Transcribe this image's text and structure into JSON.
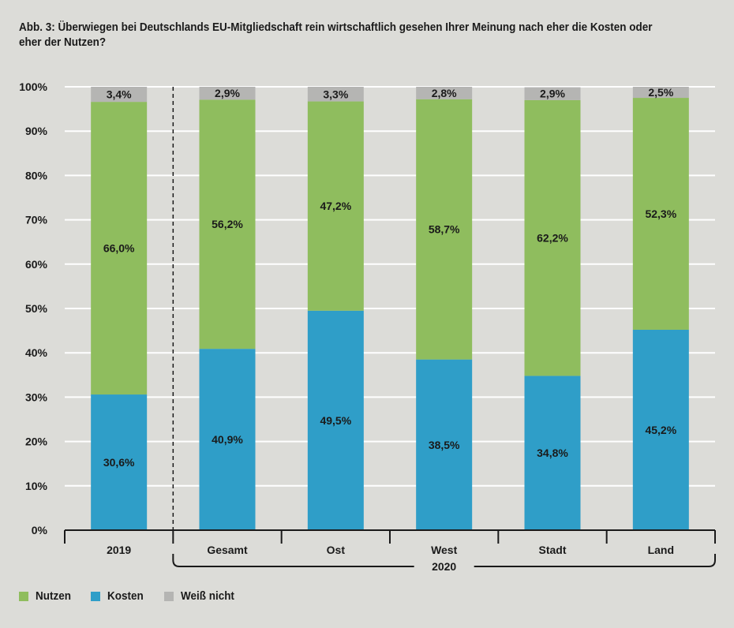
{
  "chart_data": {
    "type": "bar",
    "stacked": true,
    "title": "Abb. 3: Überwiegen bei Deutschlands EU-Mitgliedschaft rein wirtschaftlich gesehen Ihrer Meinung nach eher die Kosten oder eher der Nutzen?",
    "categories": [
      "2019",
      "Gesamt",
      "Ost",
      "West",
      "Stadt",
      "Land"
    ],
    "category_group": {
      "label": "2020",
      "members": [
        "Gesamt",
        "Ost",
        "West",
        "Stadt",
        "Land"
      ]
    },
    "series": [
      {
        "name": "Kosten",
        "color": "#2f9ec8",
        "values": [
          30.6,
          40.9,
          49.5,
          38.5,
          34.8,
          45.2
        ],
        "labels": [
          "30,6%",
          "40,9%",
          "49,5%",
          "38,5%",
          "34,8%",
          "45,2%"
        ]
      },
      {
        "name": "Nutzen",
        "color": "#8fbd5e",
        "values": [
          66.0,
          56.2,
          47.2,
          58.7,
          62.2,
          52.3
        ],
        "labels": [
          "66,0%",
          "56,2%",
          "47,2%",
          "58,7%",
          "62,2%",
          "52,3%"
        ]
      },
      {
        "name": "Weiß nicht",
        "color": "#b5b5b3",
        "values": [
          3.4,
          2.9,
          3.3,
          2.8,
          2.9,
          2.5
        ],
        "labels": [
          "3,4%",
          "2,9%",
          "3,3%",
          "2,8%",
          "2,9%",
          "2,5%"
        ]
      }
    ],
    "legend_order": [
      "Nutzen",
      "Kosten",
      "Weiß nicht"
    ],
    "yticks": [
      "0%",
      "10%",
      "20%",
      "30%",
      "40%",
      "50%",
      "60%",
      "70%",
      "80%",
      "90%",
      "100%"
    ],
    "ylim": [
      0,
      100
    ],
    "grid": true,
    "legend_position": "bottom-left",
    "background": "#dcdcd8"
  }
}
